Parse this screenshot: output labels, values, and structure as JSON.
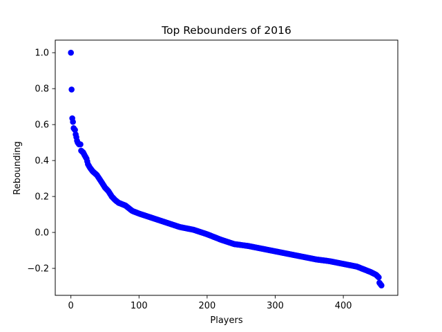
{
  "chart_data": {
    "type": "scatter",
    "title": "Top Rebounders of 2016",
    "xlabel": "Players",
    "ylabel": "Rebounding",
    "xlim": [
      -23,
      480
    ],
    "ylim": [
      -0.35,
      1.07
    ],
    "xticks": [
      0,
      100,
      200,
      300,
      400
    ],
    "xtick_labels": [
      "0",
      "100",
      "200",
      "300",
      "400"
    ],
    "yticks": [
      -0.2,
      0.0,
      0.2,
      0.4,
      0.6,
      0.8,
      1.0
    ],
    "ytick_labels": [
      "−0.2",
      "0.0",
      "0.2",
      "0.4",
      "0.6",
      "0.8",
      "1.0"
    ],
    "grid": false,
    "legend": "none",
    "marker_color": "#0000ff",
    "curve_anchors": [
      [
        0,
        1.0
      ],
      [
        1,
        0.795
      ],
      [
        2,
        0.635
      ],
      [
        3,
        0.615
      ],
      [
        4,
        0.58
      ],
      [
        5,
        0.575
      ],
      [
        6,
        0.57
      ],
      [
        7,
        0.545
      ],
      [
        8,
        0.53
      ],
      [
        9,
        0.51
      ],
      [
        10,
        0.5
      ],
      [
        12,
        0.49
      ],
      [
        14,
        0.49
      ],
      [
        15,
        0.455
      ],
      [
        18,
        0.445
      ],
      [
        20,
        0.43
      ],
      [
        23,
        0.41
      ],
      [
        25,
        0.38
      ],
      [
        28,
        0.36
      ],
      [
        32,
        0.34
      ],
      [
        38,
        0.32
      ],
      [
        45,
        0.28
      ],
      [
        50,
        0.25
      ],
      [
        55,
        0.23
      ],
      [
        60,
        0.2
      ],
      [
        65,
        0.18
      ],
      [
        70,
        0.165
      ],
      [
        80,
        0.15
      ],
      [
        90,
        0.12
      ],
      [
        100,
        0.105
      ],
      [
        120,
        0.08
      ],
      [
        140,
        0.055
      ],
      [
        160,
        0.03
      ],
      [
        180,
        0.015
      ],
      [
        200,
        -0.01
      ],
      [
        220,
        -0.04
      ],
      [
        240,
        -0.065
      ],
      [
        260,
        -0.075
      ],
      [
        280,
        -0.09
      ],
      [
        300,
        -0.105
      ],
      [
        320,
        -0.12
      ],
      [
        340,
        -0.135
      ],
      [
        360,
        -0.15
      ],
      [
        380,
        -0.16
      ],
      [
        400,
        -0.175
      ],
      [
        420,
        -0.19
      ],
      [
        430,
        -0.205
      ],
      [
        440,
        -0.22
      ],
      [
        448,
        -0.235
      ],
      [
        452,
        -0.25
      ],
      [
        453,
        -0.28
      ],
      [
        455,
        -0.29
      ],
      [
        456,
        -0.295
      ]
    ],
    "num_points": 457
  }
}
